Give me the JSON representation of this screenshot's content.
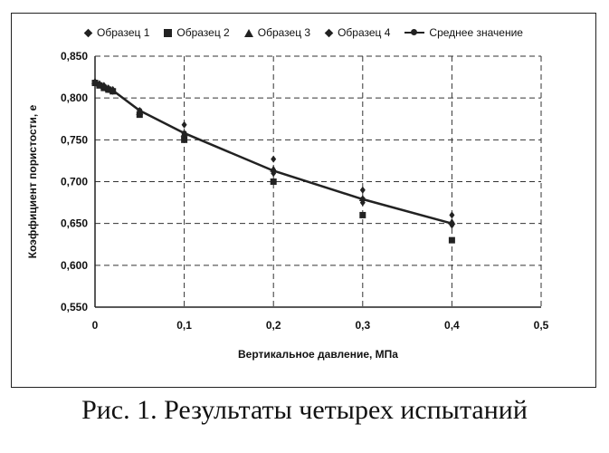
{
  "chart_data": {
    "type": "scatter",
    "xlabel": "Вертикальное давление, МПа",
    "ylabel": "Коэффициент пористости, е",
    "xlim": [
      0,
      0.5
    ],
    "ylim": [
      0.55,
      0.85
    ],
    "x_ticks": [
      "0",
      "0,1",
      "0,2",
      "0,3",
      "0,4",
      "0,5"
    ],
    "y_ticks": [
      "0,550",
      "0,600",
      "0,650",
      "0,700",
      "0,750",
      "0,800",
      "0,850"
    ],
    "grid": "dashed",
    "legend_position": "top",
    "series": [
      {
        "name": "Образец 1",
        "marker": "diamond",
        "x": [
          0,
          0.005,
          0.01,
          0.015,
          0.02,
          0.05,
          0.1,
          0.2,
          0.3,
          0.4
        ],
        "y": [
          0.819,
          0.817,
          0.815,
          0.812,
          0.81,
          0.785,
          0.768,
          0.727,
          0.69,
          0.66
        ]
      },
      {
        "name": "Образец 2",
        "marker": "square",
        "x": [
          0,
          0.005,
          0.01,
          0.015,
          0.02,
          0.05,
          0.1,
          0.2,
          0.3,
          0.4
        ],
        "y": [
          0.818,
          0.815,
          0.812,
          0.81,
          0.808,
          0.78,
          0.75,
          0.7,
          0.66,
          0.63
        ]
      },
      {
        "name": "Образец 3",
        "marker": "triangle",
        "x": [
          0,
          0.005,
          0.01,
          0.015,
          0.02,
          0.05,
          0.1,
          0.2,
          0.3,
          0.4
        ],
        "y": [
          0.82,
          0.817,
          0.814,
          0.811,
          0.809,
          0.783,
          0.757,
          0.715,
          0.68,
          0.652
        ]
      },
      {
        "name": "Образец 4",
        "marker": "diamond",
        "x": [
          0,
          0.005,
          0.01,
          0.015,
          0.02,
          0.05,
          0.1,
          0.2,
          0.3,
          0.4
        ],
        "y": [
          0.818,
          0.816,
          0.813,
          0.81,
          0.808,
          0.782,
          0.755,
          0.71,
          0.675,
          0.648
        ]
      },
      {
        "name": "Среднее значение",
        "marker": "line",
        "x": [
          0,
          0.005,
          0.01,
          0.015,
          0.02,
          0.05,
          0.1,
          0.2,
          0.3,
          0.4
        ],
        "y": [
          0.819,
          0.816,
          0.814,
          0.811,
          0.809,
          0.785,
          0.758,
          0.713,
          0.679,
          0.65
        ]
      }
    ]
  },
  "caption": "Рис. 1. Результаты четырех испытаний",
  "colors": {
    "marks": "#222222",
    "grid": "#333333"
  }
}
